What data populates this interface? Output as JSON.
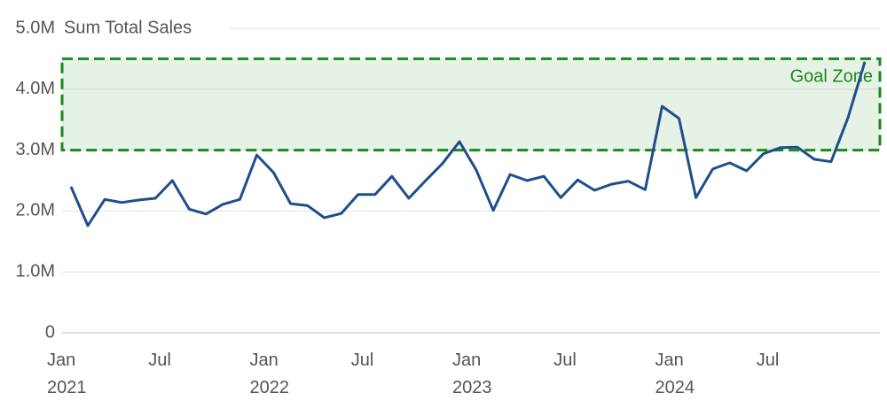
{
  "chart_data": {
    "type": "line",
    "y_axis_title": "Sum Total Sales",
    "categories": [
      "Jan\n2021",
      null,
      null,
      null,
      null,
      null,
      "Jul",
      null,
      null,
      null,
      null,
      null,
      "Jan\n2022",
      null,
      null,
      null,
      null,
      null,
      "Jul",
      null,
      null,
      null,
      null,
      null,
      "Jan\n2023",
      null,
      null,
      null,
      null,
      null,
      "Jul",
      null,
      null,
      null,
      null,
      null,
      "Jan\n2024",
      null,
      null,
      null,
      null,
      null,
      "Jul",
      null,
      null,
      null,
      null,
      null
    ],
    "series": [
      {
        "name": "Sum Total Sales",
        "color": "#1f4e8c",
        "values": [
          2400000,
          1760000,
          2190000,
          2140000,
          2180000,
          2210000,
          2500000,
          2030000,
          1950000,
          2110000,
          2190000,
          2920000,
          2630000,
          2120000,
          2090000,
          1890000,
          1960000,
          2270000,
          2270000,
          2570000,
          2210000,
          2500000,
          2780000,
          3140000,
          2670000,
          2010000,
          2600000,
          2500000,
          2570000,
          2220000,
          2510000,
          2340000,
          2440000,
          2490000,
          2350000,
          3720000,
          3520000,
          2220000,
          2690000,
          2790000,
          2660000,
          2940000,
          3040000,
          3050000,
          2850000,
          2810000,
          3530000,
          4450000
        ]
      }
    ],
    "ylim": [
      0,
      5000000
    ],
    "yticks": [
      0,
      {
        "value": 1000000,
        "label": "1.0M"
      },
      {
        "value": 2000000,
        "label": "2.0M"
      },
      {
        "value": 3000000,
        "label": "3.0M"
      },
      {
        "value": 4000000,
        "label": "4.0M"
      },
      {
        "value": 5000000,
        "label": "5.0M"
      }
    ],
    "grid": true,
    "goal_zone": {
      "label": "Goal Zone",
      "range": [
        3000000,
        4500000
      ],
      "color": "#1a8a1a"
    }
  }
}
